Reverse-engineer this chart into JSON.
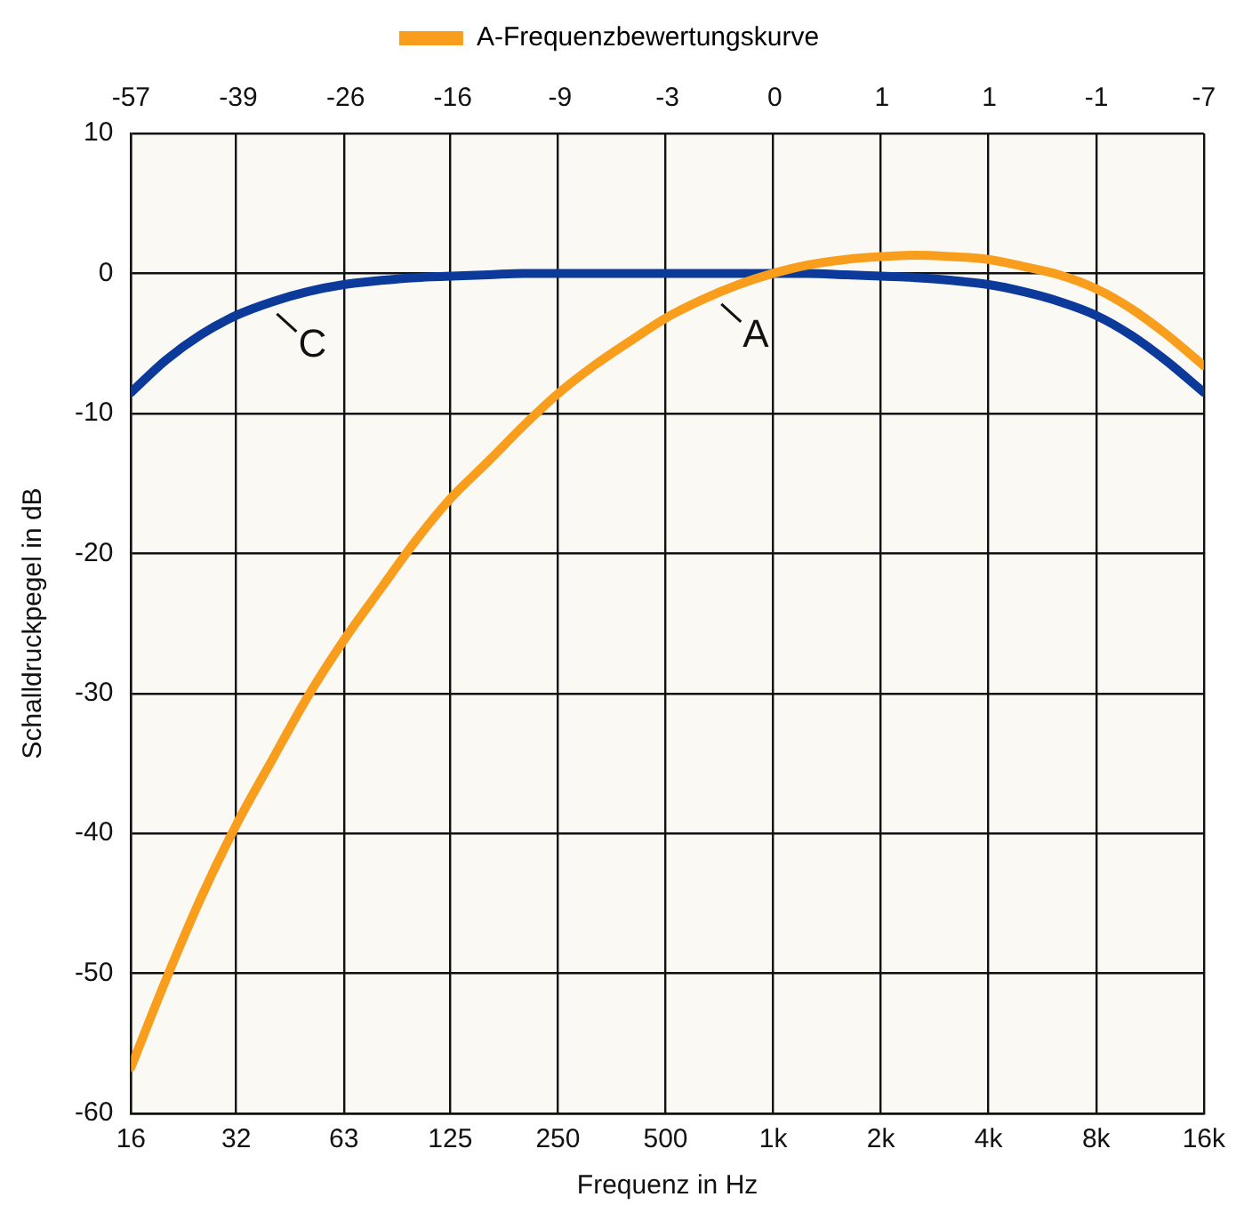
{
  "chart_data": {
    "type": "line",
    "xlabel": "Frequenz in Hz",
    "ylabel": "Schalldruckpegel in dB",
    "log": "x",
    "grid": true,
    "legend": "top",
    "marker": "none",
    "line_style": "solid",
    "xlim": [
      16,
      16000
    ],
    "xticks": [
      16,
      {
        "value": 31.5,
        "label": "32"
      },
      63,
      125,
      250,
      500,
      {
        "value": 1000,
        "label": "1k"
      },
      {
        "value": 2000,
        "label": "2k"
      },
      {
        "value": 4000,
        "label": "4k"
      },
      {
        "value": 8000,
        "label": "8k"
      },
      {
        "value": 16000,
        "label": "16k"
      }
    ],
    "ylim": [
      -60,
      10
    ],
    "yticks": [
      -60,
      -50,
      -40,
      -30,
      -20,
      -10,
      0,
      10
    ],
    "series": [
      {
        "name": "A-Frequenzbewertungskurve",
        "color": "#f89d1c",
        "x": [
          16,
          20,
          25,
          31.5,
          40,
          50,
          63,
          80,
          100,
          125,
          160,
          200,
          250,
          315,
          400,
          500,
          630,
          800,
          1000,
          1250,
          1600,
          2000,
          2500,
          3150,
          4000,
          5000,
          6300,
          8000,
          10000,
          12500,
          16000
        ],
        "values": [
          -56.7,
          -50.5,
          -44.7,
          -39.4,
          -34.6,
          -30.2,
          -26.2,
          -22.5,
          -19.1,
          -16.1,
          -13.4,
          -10.9,
          -8.6,
          -6.6,
          -4.8,
          -3.2,
          -1.9,
          -0.8,
          0,
          0.6,
          1.0,
          1.2,
          1.3,
          1.2,
          1.0,
          0.5,
          -0.1,
          -1.1,
          -2.5,
          -4.3,
          -6.6
        ]
      },
      {
        "color": "#0b3a9a",
        "x": [
          16,
          20,
          25,
          31.5,
          40,
          50,
          63,
          80,
          100,
          125,
          160,
          200,
          250,
          500,
          1000,
          1250,
          1600,
          2000,
          2500,
          3150,
          4000,
          5000,
          6300,
          8000,
          10000,
          12500,
          16000
        ],
        "values": [
          -8.5,
          -6.2,
          -4.4,
          -3.0,
          -2.0,
          -1.3,
          -0.8,
          -0.5,
          -0.3,
          -0.2,
          -0.1,
          0,
          0,
          0,
          0,
          0,
          -0.1,
          -0.2,
          -0.3,
          -0.5,
          -0.8,
          -1.3,
          -2.0,
          -3.0,
          -4.4,
          -6.2,
          -8.5
        ]
      }
    ],
    "annotations": [
      {
        "text": "C",
        "x": 40,
        "y": -2.5
      },
      {
        "text": "A",
        "x": 700,
        "y": -1.8
      },
      "-57",
      "-39",
      "-26",
      "-16",
      "-9",
      "-3",
      "0",
      "1",
      "1",
      "-1",
      "-7"
    ]
  }
}
